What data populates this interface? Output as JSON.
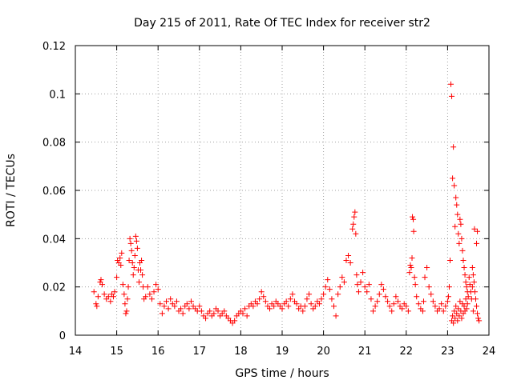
{
  "chart_data": {
    "type": "scatter",
    "title": "Day 215 of 2011, Rate Of TEC Index for receiver str2",
    "xlabel": "GPS time / hours",
    "ylabel": "ROTI / TECUs",
    "xlim": [
      14,
      24
    ],
    "ylim": [
      0,
      0.12
    ],
    "x_ticks": [
      "14",
      "15",
      "16",
      "17",
      "18",
      "19",
      "20",
      "21",
      "22",
      "23",
      "24"
    ],
    "y_ticks": [
      "0",
      "0.02",
      "0.04",
      "0.06",
      "0.08",
      "0.1",
      "0.12"
    ],
    "grid": true,
    "marker": "+",
    "color": "#ff0000",
    "series": [
      {
        "points": [
          [
            14.45,
            0.018
          ],
          [
            14.5,
            0.013
          ],
          [
            14.52,
            0.012
          ],
          [
            14.55,
            0.016
          ],
          [
            14.6,
            0.022
          ],
          [
            14.62,
            0.023
          ],
          [
            14.65,
            0.021
          ],
          [
            14.7,
            0.017
          ],
          [
            14.75,
            0.015
          ],
          [
            14.8,
            0.016
          ],
          [
            14.85,
            0.014
          ],
          [
            14.88,
            0.017
          ],
          [
            14.92,
            0.016
          ],
          [
            14.95,
            0.018
          ],
          [
            15.0,
            0.024
          ],
          [
            15.02,
            0.031
          ],
          [
            15.05,
            0.03
          ],
          [
            15.08,
            0.032
          ],
          [
            15.1,
            0.029
          ],
          [
            15.12,
            0.034
          ],
          [
            15.15,
            0.021
          ],
          [
            15.18,
            0.017
          ],
          [
            15.2,
            0.013
          ],
          [
            15.22,
            0.009
          ],
          [
            15.24,
            0.01
          ],
          [
            15.26,
            0.015
          ],
          [
            15.28,
            0.02
          ],
          [
            15.3,
            0.031
          ],
          [
            15.32,
            0.04
          ],
          [
            15.34,
            0.038
          ],
          [
            15.36,
            0.035
          ],
          [
            15.38,
            0.03
          ],
          [
            15.4,
            0.025
          ],
          [
            15.42,
            0.028
          ],
          [
            15.44,
            0.033
          ],
          [
            15.46,
            0.041
          ],
          [
            15.48,
            0.039
          ],
          [
            15.5,
            0.036
          ],
          [
            15.52,
            0.027
          ],
          [
            15.54,
            0.022
          ],
          [
            15.56,
            0.03
          ],
          [
            15.58,
            0.027
          ],
          [
            15.6,
            0.031
          ],
          [
            15.62,
            0.025
          ],
          [
            15.64,
            0.02
          ],
          [
            15.66,
            0.015
          ],
          [
            15.7,
            0.016
          ],
          [
            15.75,
            0.02
          ],
          [
            15.8,
            0.017
          ],
          [
            15.85,
            0.015
          ],
          [
            15.9,
            0.018
          ],
          [
            15.95,
            0.021
          ],
          [
            16.0,
            0.019
          ],
          [
            16.05,
            0.013
          ],
          [
            16.1,
            0.009
          ],
          [
            16.15,
            0.012
          ],
          [
            16.2,
            0.014
          ],
          [
            16.25,
            0.011
          ],
          [
            16.3,
            0.015
          ],
          [
            16.35,
            0.013
          ],
          [
            16.4,
            0.012
          ],
          [
            16.45,
            0.014
          ],
          [
            16.5,
            0.01
          ],
          [
            16.55,
            0.011
          ],
          [
            16.6,
            0.009
          ],
          [
            16.65,
            0.012
          ],
          [
            16.7,
            0.013
          ],
          [
            16.75,
            0.011
          ],
          [
            16.8,
            0.014
          ],
          [
            16.85,
            0.012
          ],
          [
            16.9,
            0.011
          ],
          [
            16.95,
            0.01
          ],
          [
            17.0,
            0.012
          ],
          [
            17.05,
            0.01
          ],
          [
            17.1,
            0.008
          ],
          [
            17.15,
            0.007
          ],
          [
            17.2,
            0.009
          ],
          [
            17.25,
            0.01
          ],
          [
            17.3,
            0.008
          ],
          [
            17.35,
            0.009
          ],
          [
            17.4,
            0.011
          ],
          [
            17.45,
            0.01
          ],
          [
            17.5,
            0.008
          ],
          [
            17.55,
            0.009
          ],
          [
            17.6,
            0.01
          ],
          [
            17.65,
            0.008
          ],
          [
            17.7,
            0.007
          ],
          [
            17.75,
            0.006
          ],
          [
            17.8,
            0.005
          ],
          [
            17.85,
            0.006
          ],
          [
            17.9,
            0.008
          ],
          [
            17.95,
            0.009
          ],
          [
            18.0,
            0.01
          ],
          [
            18.05,
            0.009
          ],
          [
            18.1,
            0.011
          ],
          [
            18.15,
            0.008
          ],
          [
            18.2,
            0.012
          ],
          [
            18.25,
            0.013
          ],
          [
            18.3,
            0.012
          ],
          [
            18.35,
            0.014
          ],
          [
            18.4,
            0.013
          ],
          [
            18.45,
            0.015
          ],
          [
            18.5,
            0.018
          ],
          [
            18.55,
            0.016
          ],
          [
            18.6,
            0.014
          ],
          [
            18.65,
            0.012
          ],
          [
            18.7,
            0.011
          ],
          [
            18.75,
            0.013
          ],
          [
            18.8,
            0.012
          ],
          [
            18.85,
            0.014
          ],
          [
            18.9,
            0.013
          ],
          [
            18.95,
            0.012
          ],
          [
            19.0,
            0.011
          ],
          [
            19.05,
            0.013
          ],
          [
            19.1,
            0.014
          ],
          [
            19.15,
            0.012
          ],
          [
            19.2,
            0.015
          ],
          [
            19.25,
            0.017
          ],
          [
            19.3,
            0.014
          ],
          [
            19.35,
            0.013
          ],
          [
            19.4,
            0.011
          ],
          [
            19.45,
            0.012
          ],
          [
            19.5,
            0.01
          ],
          [
            19.55,
            0.012
          ],
          [
            19.6,
            0.015
          ],
          [
            19.65,
            0.017
          ],
          [
            19.7,
            0.013
          ],
          [
            19.75,
            0.011
          ],
          [
            19.8,
            0.012
          ],
          [
            19.85,
            0.014
          ],
          [
            19.9,
            0.013
          ],
          [
            19.95,
            0.015
          ],
          [
            20.0,
            0.017
          ],
          [
            20.05,
            0.02
          ],
          [
            20.1,
            0.023
          ],
          [
            20.15,
            0.019
          ],
          [
            20.2,
            0.015
          ],
          [
            20.25,
            0.012
          ],
          [
            20.3,
            0.008
          ],
          [
            20.35,
            0.017
          ],
          [
            20.4,
            0.02
          ],
          [
            20.45,
            0.024
          ],
          [
            20.5,
            0.022
          ],
          [
            20.55,
            0.031
          ],
          [
            20.6,
            0.033
          ],
          [
            20.65,
            0.03
          ],
          [
            20.7,
            0.044
          ],
          [
            20.72,
            0.046
          ],
          [
            20.74,
            0.049
          ],
          [
            20.76,
            0.051
          ],
          [
            20.78,
            0.042
          ],
          [
            20.8,
            0.025
          ],
          [
            20.82,
            0.021
          ],
          [
            20.85,
            0.018
          ],
          [
            20.9,
            0.022
          ],
          [
            20.95,
            0.026
          ],
          [
            21.0,
            0.02
          ],
          [
            21.05,
            0.018
          ],
          [
            21.1,
            0.021
          ],
          [
            21.15,
            0.015
          ],
          [
            21.2,
            0.01
          ],
          [
            21.25,
            0.012
          ],
          [
            21.3,
            0.014
          ],
          [
            21.35,
            0.017
          ],
          [
            21.4,
            0.021
          ],
          [
            21.45,
            0.019
          ],
          [
            21.5,
            0.016
          ],
          [
            21.55,
            0.014
          ],
          [
            21.6,
            0.012
          ],
          [
            21.65,
            0.01
          ],
          [
            21.7,
            0.013
          ],
          [
            21.75,
            0.016
          ],
          [
            21.8,
            0.014
          ],
          [
            21.85,
            0.012
          ],
          [
            21.9,
            0.011
          ],
          [
            21.95,
            0.013
          ],
          [
            22.0,
            0.012
          ],
          [
            22.05,
            0.01
          ],
          [
            22.08,
            0.026
          ],
          [
            22.1,
            0.029
          ],
          [
            22.12,
            0.028
          ],
          [
            22.14,
            0.032
          ],
          [
            22.15,
            0.049
          ],
          [
            22.17,
            0.048
          ],
          [
            22.18,
            0.043
          ],
          [
            22.2,
            0.024
          ],
          [
            22.22,
            0.021
          ],
          [
            22.25,
            0.016
          ],
          [
            22.3,
            0.013
          ],
          [
            22.35,
            0.011
          ],
          [
            22.4,
            0.01
          ],
          [
            22.42,
            0.014
          ],
          [
            22.45,
            0.024
          ],
          [
            22.5,
            0.028
          ],
          [
            22.55,
            0.02
          ],
          [
            22.6,
            0.017
          ],
          [
            22.65,
            0.014
          ],
          [
            22.7,
            0.012
          ],
          [
            22.75,
            0.01
          ],
          [
            22.8,
            0.011
          ],
          [
            22.85,
            0.013
          ],
          [
            22.9,
            0.01
          ],
          [
            22.95,
            0.012
          ],
          [
            23.0,
            0.014
          ],
          [
            23.02,
            0.016
          ],
          [
            23.04,
            0.02
          ],
          [
            23.06,
            0.031
          ],
          [
            23.08,
            0.104
          ],
          [
            23.1,
            0.099
          ],
          [
            23.12,
            0.065
          ],
          [
            23.14,
            0.078
          ],
          [
            23.16,
            0.062
          ],
          [
            23.18,
            0.045
          ],
          [
            23.2,
            0.057
          ],
          [
            23.22,
            0.054
          ],
          [
            23.24,
            0.05
          ],
          [
            23.26,
            0.042
          ],
          [
            23.28,
            0.038
          ],
          [
            23.3,
            0.048
          ],
          [
            23.32,
            0.046
          ],
          [
            23.34,
            0.04
          ],
          [
            23.36,
            0.035
          ],
          [
            23.38,
            0.031
          ],
          [
            23.4,
            0.028
          ],
          [
            23.42,
            0.025
          ],
          [
            23.44,
            0.022
          ],
          [
            23.46,
            0.02
          ],
          [
            23.48,
            0.018
          ],
          [
            23.5,
            0.016
          ],
          [
            23.1,
            0.006
          ],
          [
            23.12,
            0.008
          ],
          [
            23.14,
            0.005
          ],
          [
            23.16,
            0.01
          ],
          [
            23.18,
            0.007
          ],
          [
            23.2,
            0.012
          ],
          [
            23.22,
            0.009
          ],
          [
            23.24,
            0.006
          ],
          [
            23.26,
            0.011
          ],
          [
            23.28,
            0.008
          ],
          [
            23.3,
            0.014
          ],
          [
            23.32,
            0.01
          ],
          [
            23.34,
            0.007
          ],
          [
            23.36,
            0.013
          ],
          [
            23.38,
            0.009
          ],
          [
            23.4,
            0.012
          ],
          [
            23.42,
            0.01
          ],
          [
            23.44,
            0.015
          ],
          [
            23.46,
            0.011
          ],
          [
            23.48,
            0.013
          ],
          [
            23.52,
            0.024
          ],
          [
            23.54,
            0.021
          ],
          [
            23.56,
            0.018
          ],
          [
            23.58,
            0.015
          ],
          [
            23.6,
            0.02
          ],
          [
            23.62,
            0.025
          ],
          [
            23.64,
            0.022
          ],
          [
            23.66,
            0.018
          ],
          [
            23.68,
            0.015
          ],
          [
            23.7,
            0.012
          ],
          [
            23.72,
            0.009
          ],
          [
            23.74,
            0.007
          ],
          [
            23.76,
            0.006
          ],
          [
            23.6,
            0.028
          ],
          [
            23.62,
            0.01
          ],
          [
            23.65,
            0.044
          ],
          [
            23.7,
            0.038
          ],
          [
            23.72,
            0.043
          ]
        ]
      }
    ]
  }
}
